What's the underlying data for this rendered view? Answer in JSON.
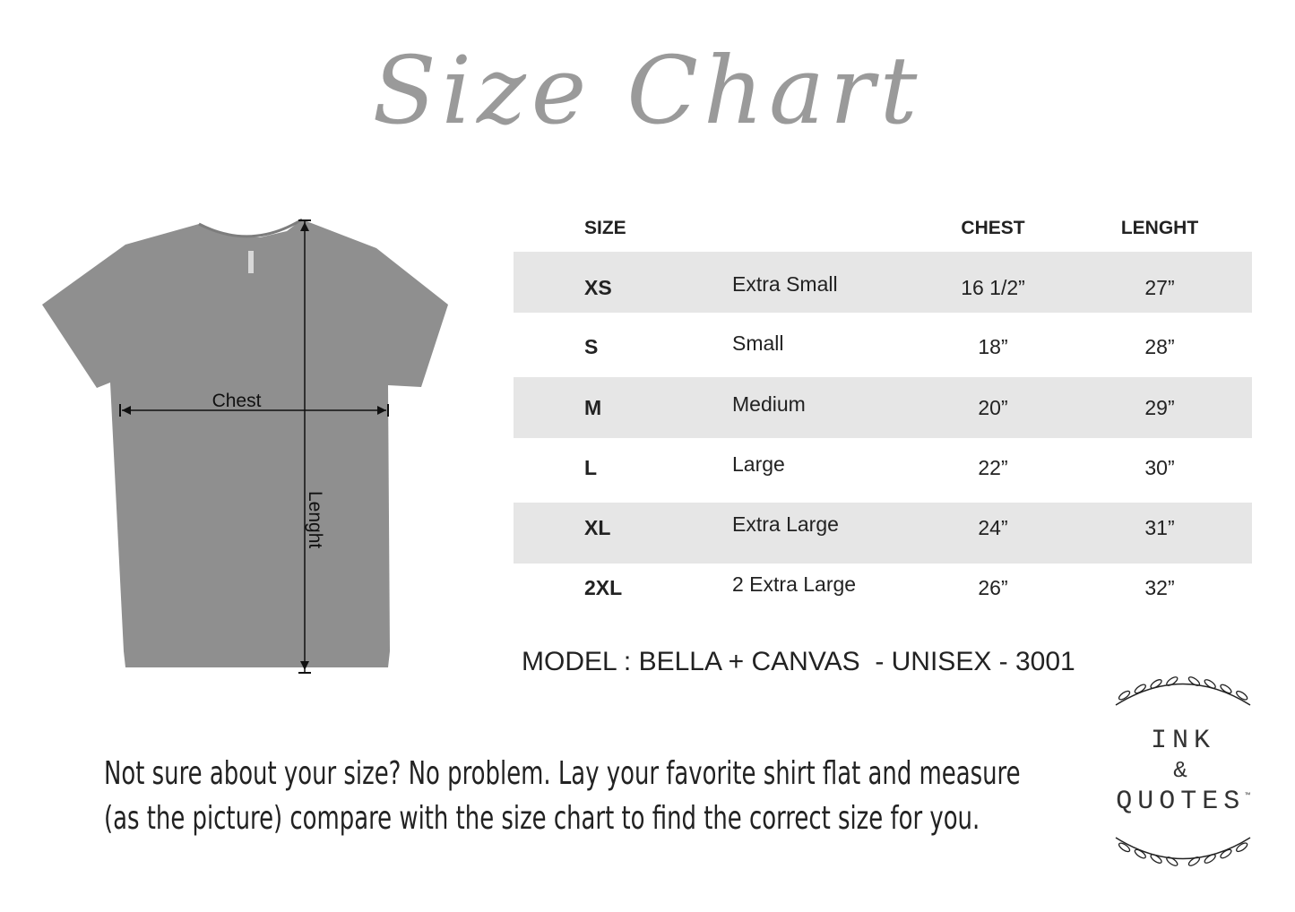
{
  "title": "Size Chart",
  "diagram": {
    "chest_label": "Chest",
    "length_label": "Lenght",
    "shirt_color": "#8f8f8f"
  },
  "table": {
    "headers": {
      "size": "SIZE",
      "chest": "CHEST",
      "length": "LENGHT"
    },
    "rows": [
      {
        "size": "XS",
        "name": "Extra Small",
        "chest": "16 1/2”",
        "length": "27”"
      },
      {
        "size": "S",
        "name": "Small",
        "chest": "18”",
        "length": "28”"
      },
      {
        "size": "M",
        "name": "Medium",
        "chest": "20”",
        "length": "29”"
      },
      {
        "size": "L",
        "name": "Large",
        "chest": "22”",
        "length": "30”"
      },
      {
        "size": "XL",
        "name": "Extra Large",
        "chest": "24”",
        "length": "31”"
      },
      {
        "size": "2XL",
        "name": "2 Extra Large",
        "chest": "26”",
        "length": "32”"
      }
    ],
    "stripe_color": "#e6e6e6"
  },
  "model": "MODEL : BELLA + CANVAS  - UNISEX - 3001",
  "note": {
    "line1": "Not sure about your size? No problem. Lay your favorite shirt flat and measure",
    "line2": "(as the picture) compare with the size chart to find the correct size for you."
  },
  "logo": {
    "line1": "INK",
    "line2": "&",
    "line3": "QUOTES",
    "tm": "™"
  }
}
